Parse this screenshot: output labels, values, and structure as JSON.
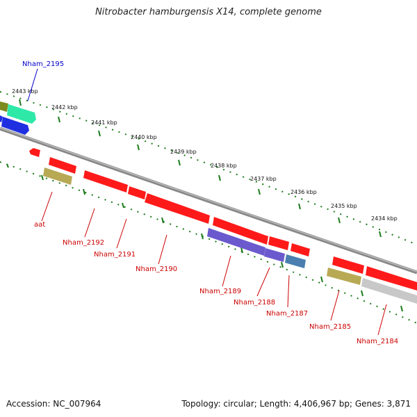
{
  "title": "Nitrobacter hamburgensis X14, complete genome",
  "footer": {
    "accession": "Accession: NC_007964",
    "summary": "Topology: circular; Length: 4,406,967 bp; Genes: 3,871"
  },
  "colors": {
    "cds": "#ff1a1a",
    "cds_blue": "#1f2fe0",
    "cds_teal": "#2ee8a8",
    "cds_olive": "#7d8a1f",
    "gene_tan": "#b8a955",
    "gene_purple": "#6a5acd",
    "gene_steel": "#4a7fb0",
    "gene_gray": "#c8c8c8",
    "ticks": "#1a7a1a",
    "backbone": "#8a8a8a",
    "label_red": "#cc0000",
    "label_blue": "#0000cc"
  },
  "kbp_labels": [
    "2443 kbp",
    "2442 kbp",
    "2441 kbp",
    "2440 kbp",
    "2439 kbp",
    "2438 kbp",
    "2437 kbp",
    "2436 kbp",
    "2435 kbp",
    "2434 kbp"
  ],
  "gene_labels": [
    "Nham_2195",
    "aat",
    "Nham_2192",
    "Nham_2191",
    "Nham_2190",
    "Nham_2189",
    "Nham_2188",
    "Nham_2187",
    "Nham_2185",
    "Nham_2184"
  ]
}
